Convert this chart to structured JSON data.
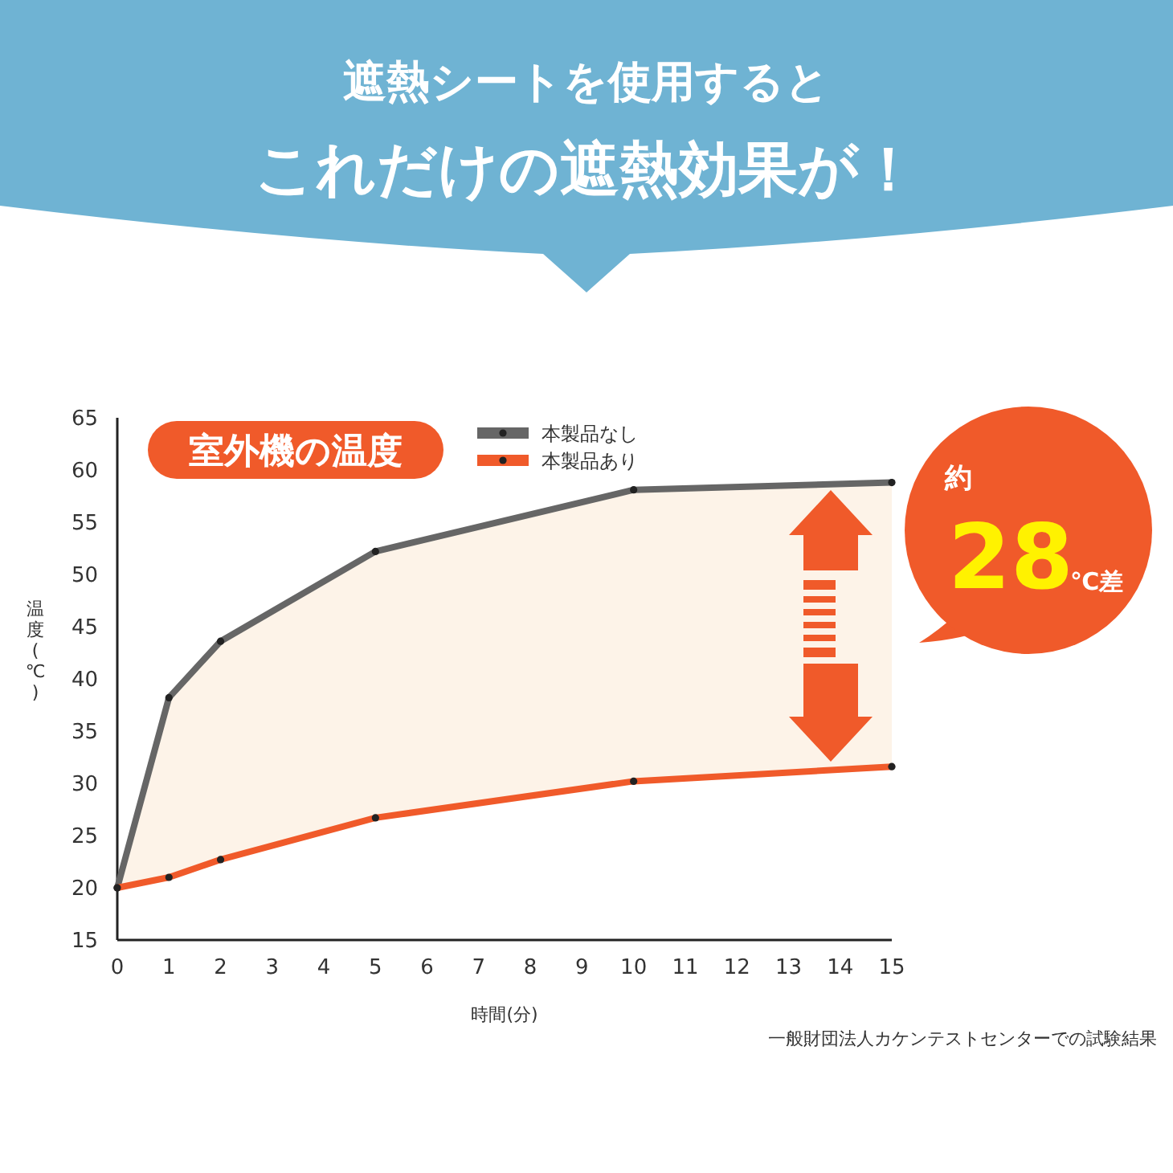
{
  "chart_data": {
    "type": "line",
    "title": "遮熱シートを使用すると",
    "subtitle": "これだけの遮熱効果が！",
    "xlabel": "時間(分)",
    "ylabel": "温度(℃)",
    "x": [
      0,
      1,
      2,
      5,
      10,
      15
    ],
    "series": [
      {
        "name": "本製品なし",
        "color": "#666666",
        "values": [
          20,
          38.2,
          43.6,
          52.2,
          58.1,
          58.8
        ]
      },
      {
        "name": "本製品あり",
        "color": "#f05a2a",
        "values": [
          20,
          21,
          22.7,
          26.7,
          30.2,
          31.6
        ]
      }
    ],
    "xlim": [
      0,
      15
    ],
    "xticks": [
      0,
      1,
      2,
      3,
      4,
      5,
      6,
      7,
      8,
      9,
      10,
      11,
      12,
      13,
      14,
      15
    ],
    "ylim": [
      15,
      65
    ],
    "yticks": [
      15,
      20,
      25,
      30,
      35,
      40,
      45,
      50,
      55,
      60,
      65
    ],
    "grid": false,
    "legend": "top",
    "marker": "circle",
    "line_style": "solid",
    "annotations": [
      "室外機の温度",
      "約28℃差",
      "一般財団法人カケンテストセンターでの試験結果"
    ]
  }
}
